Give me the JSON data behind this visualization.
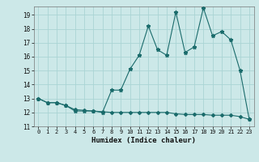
{
  "xlabel": "Humidex (Indice chaleur)",
  "bg_color": "#cce8e8",
  "grid_color": "#aad4d4",
  "line_color": "#1a6b6b",
  "xlim": [
    -0.5,
    23.5
  ],
  "ylim": [
    11,
    19.6
  ],
  "yticks": [
    11,
    12,
    13,
    14,
    15,
    16,
    17,
    18,
    19
  ],
  "xticks": [
    0,
    1,
    2,
    3,
    4,
    5,
    6,
    7,
    8,
    9,
    10,
    11,
    12,
    13,
    14,
    15,
    16,
    17,
    18,
    19,
    20,
    21,
    22,
    23
  ],
  "jagged_x": [
    0,
    1,
    2,
    3,
    4,
    5,
    6,
    7,
    8,
    9,
    10,
    11,
    12,
    13,
    14,
    15,
    16,
    17,
    18,
    19,
    20,
    21,
    22,
    23
  ],
  "jagged_y": [
    13.0,
    12.7,
    12.7,
    12.5,
    12.1,
    12.1,
    12.1,
    12.0,
    13.6,
    13.6,
    15.1,
    16.1,
    18.2,
    16.5,
    16.1,
    19.2,
    16.3,
    16.7,
    19.5,
    17.5,
    17.8,
    17.2,
    15.0,
    11.5
  ],
  "smooth_x": [
    0,
    1,
    2,
    3,
    4,
    5,
    6,
    7,
    8,
    9,
    10,
    11,
    12,
    13,
    14,
    15,
    16,
    17,
    18,
    19,
    20,
    21,
    22,
    23
  ],
  "smooth_y": [
    13.0,
    12.7,
    12.7,
    12.5,
    12.2,
    12.15,
    12.1,
    12.05,
    12.0,
    12.0,
    12.0,
    12.0,
    12.0,
    12.0,
    12.0,
    11.9,
    11.85,
    11.85,
    11.85,
    11.8,
    11.8,
    11.8,
    11.7,
    11.5
  ]
}
